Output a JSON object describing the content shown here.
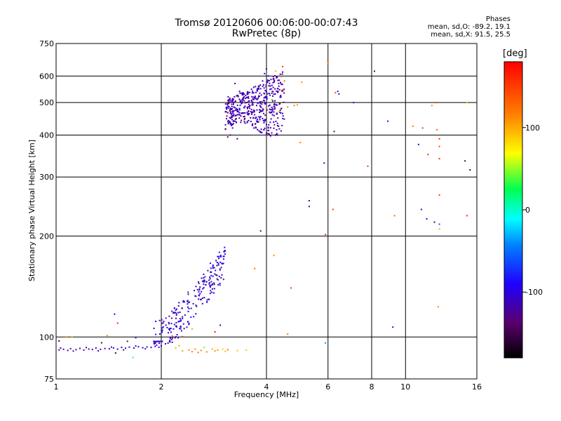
{
  "chart_data": {
    "type": "scatter",
    "title": "Tromsø 20120606 00:06:00-00:07:43",
    "subtitle": "RwPretec (8p)",
    "annotation": {
      "heading": "Phases",
      "o_mode": "mean, sd,O: -89.2, 19.1",
      "x_mode": "mean, sd,X:  91.5, 25.5"
    },
    "xlabel": "Frequency [MHz]",
    "ylabel": "Stationary phase Virtual Height [km]",
    "x_scale": "log",
    "y_scale": "log",
    "xlim": [
      1,
      16
    ],
    "ylim": [
      75,
      750
    ],
    "x_ticks": [
      {
        "value": 1,
        "label": "1"
      },
      {
        "value": 2,
        "label": "2"
      },
      {
        "value": 4,
        "label": "4"
      },
      {
        "value": 6,
        "label": "6"
      },
      {
        "value": 8,
        "label": "8"
      },
      {
        "value": 10,
        "label": "10"
      },
      {
        "value": 16,
        "label": "16"
      }
    ],
    "y_ticks": [
      {
        "value": 75,
        "label": "75"
      },
      {
        "value": 100,
        "label": "100"
      },
      {
        "value": 200,
        "label": "200"
      },
      {
        "value": 300,
        "label": "300"
      },
      {
        "value": 400,
        "label": "400"
      },
      {
        "value": 500,
        "label": "500"
      },
      {
        "value": 600,
        "label": "600"
      },
      {
        "value": 750,
        "label": "750"
      }
    ],
    "grid": true,
    "colorbar": {
      "label": "[deg]",
      "range": [
        -180,
        180
      ],
      "ticks": [
        {
          "value": 100,
          "label": "100"
        },
        {
          "value": 0,
          "label": "0"
        },
        {
          "value": -100,
          "label": "-100"
        }
      ]
    },
    "points": [
      [
        1.02,
        91.5,
        -118
      ],
      [
        1.05,
        91.9,
        -112
      ],
      [
        1.08,
        91.2,
        -120
      ],
      [
        1.1,
        92.3,
        -110
      ],
      [
        1.14,
        91.7,
        -115
      ],
      [
        1.17,
        92.5,
        -108
      ],
      [
        1.2,
        91.4,
        -118
      ],
      [
        1.24,
        92.1,
        -112
      ],
      [
        1.27,
        91.8,
        -116
      ],
      [
        1.3,
        92.7,
        -106
      ],
      [
        1.34,
        91.9,
        -114
      ],
      [
        1.38,
        92.4,
        -110
      ],
      [
        1.42,
        92.2,
        -112
      ],
      [
        1.46,
        92.8,
        -104
      ],
      [
        1.5,
        92.0,
        -114
      ],
      [
        1.54,
        93.1,
        -104
      ],
      [
        1.58,
        92.6,
        -110
      ],
      [
        1.62,
        93.3,
        -102
      ],
      [
        1.67,
        92.7,
        -108
      ],
      [
        1.72,
        93.5,
        -100
      ],
      [
        1.77,
        92.9,
        -106
      ],
      [
        1.82,
        93.4,
        -104
      ],
      [
        1.87,
        93.1,
        -108
      ],
      [
        1.92,
        93.8,
        -100
      ],
      [
        1.97,
        93.2,
        -106
      ],
      [
        2.0,
        94.0,
        -98
      ],
      [
        1.03,
        92.7,
        -110
      ],
      [
        1.12,
        90.8,
        -122
      ],
      [
        1.22,
        93.0,
        -106
      ],
      [
        1.32,
        90.9,
        -120
      ],
      [
        1.44,
        93.3,
        -104
      ],
      [
        1.56,
        91.5,
        -118
      ],
      [
        1.69,
        94.0,
        -96
      ],
      [
        1.8,
        92.2,
        -112
      ],
      [
        1.94,
        94.6,
        -96
      ],
      [
        1.07,
        100.0,
        110
      ],
      [
        1.11,
        100.2,
        95
      ],
      [
        1.02,
        97.3,
        -150
      ],
      [
        1.48,
        89.6,
        -150
      ],
      [
        1.66,
        86.9,
        5
      ],
      [
        1.35,
        96.1,
        -145
      ],
      [
        1.6,
        97.1,
        -140
      ],
      [
        1.69,
        99.5,
        -90
      ],
      [
        1.4,
        101.0,
        110
      ],
      [
        2.4,
        91.5,
        120
      ],
      [
        2.45,
        90.4,
        115
      ],
      [
        2.5,
        92.1,
        110
      ],
      [
        2.55,
        89.9,
        122
      ],
      [
        2.6,
        91.2,
        116
      ],
      [
        2.8,
        92.1,
        100
      ],
      [
        2.85,
        90.9,
        112
      ],
      [
        2.9,
        91.4,
        108
      ],
      [
        3.0,
        92.1,
        85
      ],
      [
        3.05,
        90.6,
        95
      ],
      [
        3.1,
        91.6,
        120
      ],
      [
        3.3,
        91.1,
        95
      ],
      [
        3.5,
        91.4,
        90
      ],
      [
        2.3,
        90.9,
        108
      ],
      [
        2.2,
        92.6,
        100
      ],
      [
        2.65,
        93.0,
        40
      ],
      [
        2.25,
        94.2,
        105
      ],
      [
        2.7,
        90.3,
        113
      ],
      [
        1.5,
        110.0,
        160
      ],
      [
        1.47,
        117.0,
        -90
      ],
      [
        2.3,
        100.3,
        160
      ],
      [
        2.15,
        100.6,
        145
      ],
      [
        2.95,
        108.4,
        -105
      ],
      [
        2.45,
        105.6,
        100
      ],
      [
        2.85,
        103.6,
        170
      ],
      [
        3.15,
        400.0,
        -125
      ],
      [
        3.2,
        420.0,
        -118
      ],
      [
        3.25,
        440.0,
        -112
      ],
      [
        3.3,
        460.0,
        -120
      ],
      [
        3.35,
        480.0,
        -115
      ],
      [
        3.4,
        500.0,
        -110
      ],
      [
        3.45,
        520.0,
        -122
      ],
      [
        3.5,
        500.0,
        -114
      ],
      [
        3.55,
        470.0,
        -118
      ],
      [
        3.6,
        450.0,
        -110
      ],
      [
        3.65,
        430.0,
        -116
      ],
      [
        3.7,
        460.0,
        -120
      ],
      [
        3.75,
        490.0,
        -112
      ],
      [
        3.8,
        520.0,
        -118
      ],
      [
        3.85,
        550.0,
        -110
      ],
      [
        3.9,
        580.0,
        -115
      ],
      [
        3.95,
        610.0,
        -108
      ],
      [
        4.0,
        630.0,
        -112
      ],
      [
        4.05,
        600.0,
        -104
      ],
      [
        4.1,
        560.0,
        -110
      ],
      [
        4.2,
        530.0,
        -100
      ],
      [
        4.3,
        550.0,
        -95
      ],
      [
        3.25,
        570.0,
        -115
      ],
      [
        3.35,
        540.0,
        -110
      ],
      [
        3.45,
        465.0,
        -125
      ],
      [
        3.55,
        520.0,
        -120
      ],
      [
        3.65,
        540.0,
        -105
      ],
      [
        3.75,
        440.0,
        -118
      ],
      [
        3.85,
        470.0,
        -112
      ],
      [
        3.95,
        500.0,
        -108
      ],
      [
        4.15,
        510.0,
        20
      ],
      [
        4.25,
        620.0,
        100
      ],
      [
        4.4,
        600.0,
        110
      ],
      [
        4.5,
        580.0,
        130
      ],
      [
        4.6,
        485.0,
        115
      ],
      [
        4.8,
        490.0,
        120
      ],
      [
        4.9,
        492.0,
        110
      ],
      [
        4.35,
        470.0,
        100
      ],
      [
        3.1,
        395.0,
        -140
      ],
      [
        3.3,
        390.0,
        -125
      ],
      [
        4.05,
        420.0,
        -100
      ],
      [
        4.45,
        640.0,
        150
      ],
      [
        4.45,
        545.0,
        160
      ],
      [
        5.0,
        380.0,
        120
      ],
      [
        5.05,
        575.0,
        110
      ],
      [
        5.85,
        330.0,
        -118
      ],
      [
        6.25,
        410.0,
        -130
      ],
      [
        6.3,
        535.0,
        140
      ],
      [
        6.4,
        540.0,
        -110
      ],
      [
        6.45,
        530.0,
        -105
      ],
      [
        6.0,
        655.0,
        120
      ],
      [
        7.1,
        500.0,
        -100
      ],
      [
        8.15,
        620.0,
        -140
      ],
      [
        8.9,
        440.0,
        -110
      ],
      [
        7.8,
        323.0,
        150
      ],
      [
        9.3,
        230.0,
        130
      ],
      [
        10.5,
        425.0,
        120
      ],
      [
        10.9,
        375.0,
        -100
      ],
      [
        11.2,
        420.0,
        150
      ],
      [
        11.6,
        350.0,
        160
      ],
      [
        11.9,
        490.0,
        110
      ],
      [
        12.2,
        500.0,
        150
      ],
      [
        12.5,
        390.0,
        160
      ],
      [
        12.3,
        415.0,
        130
      ],
      [
        12.5,
        370.0,
        140
      ],
      [
        12.5,
        340.0,
        160
      ],
      [
        12.5,
        265.0,
        150
      ],
      [
        12.5,
        210.0,
        100
      ],
      [
        11.1,
        240.0,
        -120
      ],
      [
        11.5,
        225.0,
        -100
      ],
      [
        12.1,
        220.0,
        -140
      ],
      [
        12.5,
        217.0,
        -60
      ],
      [
        15.0,
        500.0,
        100
      ],
      [
        14.8,
        335.0,
        -140
      ],
      [
        15.3,
        315.0,
        -150
      ],
      [
        15.0,
        230.0,
        160
      ],
      [
        12.4,
        123.0,
        120
      ],
      [
        9.2,
        107.0,
        -90
      ],
      [
        4.6,
        102.0,
        120
      ],
      [
        4.7,
        140.0,
        150
      ],
      [
        5.3,
        255.0,
        -130
      ],
      [
        5.3,
        245.0,
        -130
      ],
      [
        6.2,
        240.0,
        150
      ],
      [
        5.9,
        202.0,
        160
      ],
      [
        5.9,
        96.0,
        -40
      ],
      [
        3.85,
        207.0,
        -130
      ],
      [
        3.7,
        160.0,
        130
      ],
      [
        4.2,
        175.0,
        110
      ]
    ],
    "clusters": [
      {
        "x_range": [
          1.9,
          3.05
        ],
        "y_range": [
          95,
          190
        ],
        "center_phase": -105,
        "count": 240
      },
      {
        "x_range": [
          3.05,
          4.5
        ],
        "y_range": [
          410,
          640
        ],
        "center_phase": -115,
        "count": 440
      }
    ]
  }
}
